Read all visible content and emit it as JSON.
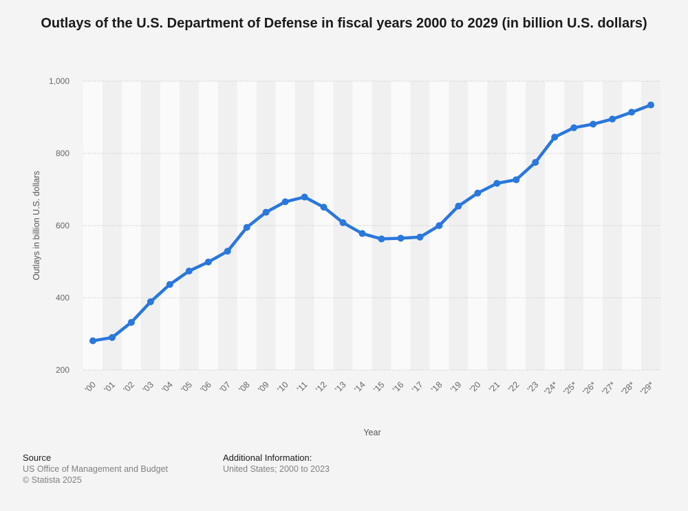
{
  "colors": {
    "line": "#2a77dd",
    "background": "#f4f4f4",
    "band_light": "#fafafa",
    "band_dark": "#f0f0f0",
    "grid": "#c8c8c8"
  },
  "chart_data": {
    "type": "line",
    "title": "Outlays of the U.S. Department of Defense in fiscal years 2000 to 2029 (in billion U.S. dollars)",
    "xlabel": "Year",
    "ylabel": "Outlays in billion U.S. dollars",
    "ylim": [
      200,
      1000
    ],
    "yticks": [
      200,
      400,
      600,
      800,
      1000
    ],
    "ytick_labels": [
      "200",
      "400",
      "600",
      "800",
      "1,000"
    ],
    "grid": true,
    "categories": [
      "'00",
      "'01",
      "'02",
      "'03",
      "'04",
      "'05",
      "'06",
      "'07",
      "'08",
      "'09",
      "'10",
      "'11",
      "'12",
      "'13",
      "'14",
      "'15",
      "'16",
      "'17",
      "'18",
      "'19",
      "'20",
      "'21",
      "'22",
      "'23",
      "'24*",
      "'25*",
      "'26*",
      "'27*",
      "'28*",
      "'29*"
    ],
    "series": [
      {
        "name": "Outlays",
        "values": [
          281,
          290,
          332,
          389,
          437,
          474,
          499,
          529,
          595,
          637,
          666,
          679,
          651,
          608,
          578,
          563,
          565,
          568,
          600,
          654,
          690,
          717,
          727,
          775,
          845,
          871,
          881,
          895,
          914,
          934
        ]
      }
    ]
  },
  "footer": {
    "source_heading": "Source",
    "source_lines": [
      "US Office of Management and Budget",
      "© Statista 2025"
    ],
    "info_heading": "Additional Information:",
    "info_lines": [
      "United States; 2000 to 2023"
    ]
  }
}
